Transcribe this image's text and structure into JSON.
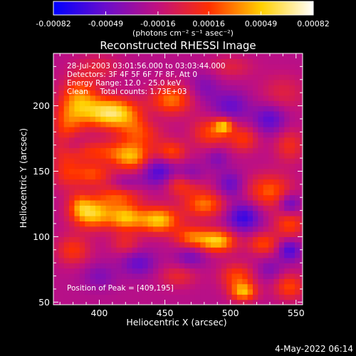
{
  "chart_data": {
    "type": "heatmap",
    "title": "Reconstructed RHESSI Image",
    "colorbar": {
      "ticks": [
        "-0.00082",
        "-0.00049",
        "-0.00016",
        "0.00016",
        "0.00049",
        "0.00082"
      ],
      "tick_values": [
        -0.00082,
        -0.00049,
        -0.00016,
        0.00016,
        0.00049,
        0.00082
      ],
      "range": [
        -0.00082,
        0.00082
      ],
      "unit_label": "(photons cm⁻² s⁻¹ asec⁻²)",
      "colors": [
        "#0000ff",
        "#6a0dcc",
        "#c01080",
        "#ff3000",
        "#ffd000",
        "#ffffff"
      ]
    },
    "xlabel": "Heliocentric X (arcsec)",
    "ylabel": "Heliocentric Y (arcsec)",
    "xlim": [
      365,
      555
    ],
    "ylim": [
      48,
      240
    ],
    "xticks": [
      400,
      450,
      500,
      550
    ],
    "yticks": [
      50,
      100,
      150,
      200
    ],
    "annotations": [
      "28-Jul-2003 03:01:56.000 to 03:03:44.000",
      "Detectors: 3F 4F 5F 6F 7F 8F, Att 0",
      "Energy Range: 12.0 - 25.0 keV",
      "Clean     Total counts: 1.73E+03"
    ],
    "peak_label": "Position of Peak = [409,195]",
    "sources": [
      {
        "x": 409,
        "y": 195,
        "sx": 14,
        "sy": 8,
        "a": 0.00082
      },
      {
        "x": 385,
        "y": 205,
        "sx": 10,
        "sy": 12,
        "a": 0.00052
      },
      {
        "x": 430,
        "y": 180,
        "sx": 12,
        "sy": 9,
        "a": 0.0004
      },
      {
        "x": 455,
        "y": 205,
        "sx": 11,
        "sy": 8,
        "a": 0.0005
      },
      {
        "x": 375,
        "y": 185,
        "sx": 8,
        "sy": 12,
        "a": 0.00035
      },
      {
        "x": 400,
        "y": 165,
        "sx": 20,
        "sy": 6,
        "a": 0.00035
      },
      {
        "x": 395,
        "y": 148,
        "sx": 10,
        "sy": 6,
        "a": 0.0004
      },
      {
        "x": 425,
        "y": 160,
        "sx": 10,
        "sy": 7,
        "a": 0.0005
      },
      {
        "x": 455,
        "y": 165,
        "sx": 8,
        "sy": 6,
        "a": 0.0004
      },
      {
        "x": 485,
        "y": 180,
        "sx": 10,
        "sy": 8,
        "a": 0.0004
      },
      {
        "x": 495,
        "y": 185,
        "sx": 5,
        "sy": 4,
        "a": 0.00055
      },
      {
        "x": 510,
        "y": 175,
        "sx": 8,
        "sy": 7,
        "a": 0.00035
      },
      {
        "x": 375,
        "y": 150,
        "sx": 8,
        "sy": 10,
        "a": 0.0003
      },
      {
        "x": 395,
        "y": 118,
        "sx": 11,
        "sy": 8,
        "a": 0.0007
      },
      {
        "x": 420,
        "y": 115,
        "sx": 9,
        "sy": 7,
        "a": 0.0006
      },
      {
        "x": 445,
        "y": 113,
        "sx": 11,
        "sy": 7,
        "a": 0.0007
      },
      {
        "x": 415,
        "y": 132,
        "sx": 12,
        "sy": 6,
        "a": 0.0004
      },
      {
        "x": 480,
        "y": 125,
        "sx": 11,
        "sy": 7,
        "a": 0.0005
      },
      {
        "x": 465,
        "y": 140,
        "sx": 10,
        "sy": 6,
        "a": 0.00045
      },
      {
        "x": 530,
        "y": 135,
        "sx": 12,
        "sy": 9,
        "a": 0.00045
      },
      {
        "x": 545,
        "y": 110,
        "sx": 8,
        "sy": 8,
        "a": 0.0004
      },
      {
        "x": 490,
        "y": 97,
        "sx": 10,
        "sy": 6,
        "a": 0.0007
      },
      {
        "x": 470,
        "y": 100,
        "sx": 9,
        "sy": 6,
        "a": 0.00045
      },
      {
        "x": 525,
        "y": 95,
        "sx": 8,
        "sy": 6,
        "a": 0.0004
      },
      {
        "x": 380,
        "y": 90,
        "sx": 9,
        "sy": 8,
        "a": 0.00035
      },
      {
        "x": 420,
        "y": 95,
        "sx": 8,
        "sy": 6,
        "a": 0.00025
      },
      {
        "x": 385,
        "y": 125,
        "sx": 6,
        "sy": 7,
        "a": 0.0003
      },
      {
        "x": 505,
        "y": 70,
        "sx": 9,
        "sy": 7,
        "a": 0.0004
      },
      {
        "x": 510,
        "y": 58,
        "sx": 7,
        "sy": 5,
        "a": 0.0006
      },
      {
        "x": 545,
        "y": 62,
        "sx": 8,
        "sy": 7,
        "a": 0.0004
      },
      {
        "x": 460,
        "y": 70,
        "sx": 10,
        "sy": 6,
        "a": 0.00025
      },
      {
        "x": 545,
        "y": 170,
        "sx": 8,
        "sy": 9,
        "a": 0.0003
      },
      {
        "x": 540,
        "y": 210,
        "sx": 12,
        "sy": 10,
        "a": 0.0002
      },
      {
        "x": 500,
        "y": 230,
        "sx": 12,
        "sy": 6,
        "a": 0.0002
      },
      {
        "x": 400,
        "y": 230,
        "sx": 12,
        "sy": 7,
        "a": 0.0002
      },
      {
        "x": 500,
        "y": 200,
        "sx": 10,
        "sy": 8,
        "a": -0.0003
      },
      {
        "x": 530,
        "y": 190,
        "sx": 9,
        "sy": 8,
        "a": -0.00035
      },
      {
        "x": 445,
        "y": 150,
        "sx": 9,
        "sy": 8,
        "a": -0.0004
      },
      {
        "x": 470,
        "y": 145,
        "sx": 7,
        "sy": 7,
        "a": -0.0003
      },
      {
        "x": 420,
        "y": 140,
        "sx": 8,
        "sy": 5,
        "a": -0.0002
      },
      {
        "x": 510,
        "y": 115,
        "sx": 9,
        "sy": 8,
        "a": -0.00045
      },
      {
        "x": 545,
        "y": 125,
        "sx": 6,
        "sy": 6,
        "a": -0.0004
      },
      {
        "x": 500,
        "y": 140,
        "sx": 7,
        "sy": 7,
        "a": -0.0003
      },
      {
        "x": 545,
        "y": 90,
        "sx": 6,
        "sy": 6,
        "a": -0.0004
      },
      {
        "x": 430,
        "y": 80,
        "sx": 9,
        "sy": 7,
        "a": -0.0003
      },
      {
        "x": 400,
        "y": 70,
        "sx": 9,
        "sy": 7,
        "a": -0.0002
      },
      {
        "x": 380,
        "y": 170,
        "sx": 6,
        "sy": 6,
        "a": -0.0002
      },
      {
        "x": 480,
        "y": 215,
        "sx": 8,
        "sy": 8,
        "a": -0.0002
      },
      {
        "x": 440,
        "y": 190,
        "sx": 7,
        "sy": 6,
        "a": -0.0001
      },
      {
        "x": 470,
        "y": 85,
        "sx": 8,
        "sy": 6,
        "a": -0.00025
      },
      {
        "x": 530,
        "y": 75,
        "sx": 7,
        "sy": 6,
        "a": -0.0002
      },
      {
        "x": 490,
        "y": 160,
        "sx": 6,
        "sy": 6,
        "a": -0.0002
      }
    ],
    "background_level": -0.0002
  },
  "footer": {
    "timestamp": "4-May-2022 06:14"
  }
}
